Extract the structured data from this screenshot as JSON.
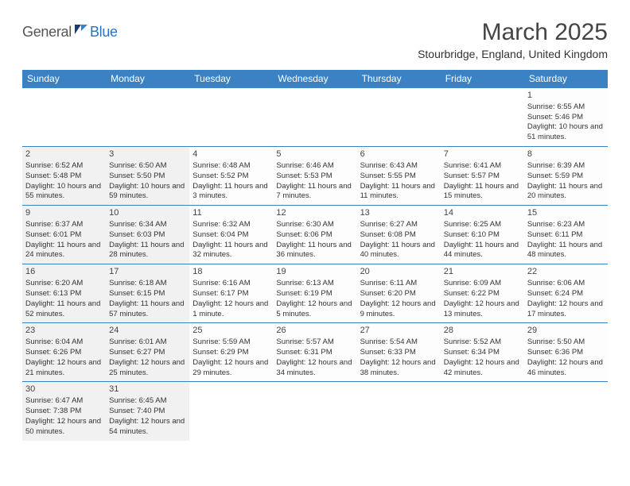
{
  "brand": {
    "part1": "General",
    "part2": "Blue"
  },
  "title": "March 2025",
  "location": "Stourbridge, England, United Kingdom",
  "daysOfWeek": [
    "Sunday",
    "Monday",
    "Tuesday",
    "Wednesday",
    "Thursday",
    "Friday",
    "Saturday"
  ],
  "colors": {
    "headerBg": "#3b82c4",
    "brandBlue": "#2b72c2",
    "shade": "#f1f1f1",
    "border": "#3b82c4"
  },
  "weeks": [
    [
      {
        "empty": true
      },
      {
        "empty": true
      },
      {
        "empty": true
      },
      {
        "empty": true
      },
      {
        "empty": true
      },
      {
        "empty": true
      },
      {
        "day": 1,
        "sunrise": "6:55 AM",
        "sunset": "5:46 PM",
        "daylight": "10 hours and 51 minutes."
      }
    ],
    [
      {
        "day": 2,
        "shade": true,
        "sunrise": "6:52 AM",
        "sunset": "5:48 PM",
        "daylight": "10 hours and 55 minutes."
      },
      {
        "day": 3,
        "shade": true,
        "sunrise": "6:50 AM",
        "sunset": "5:50 PM",
        "daylight": "10 hours and 59 minutes."
      },
      {
        "day": 4,
        "sunrise": "6:48 AM",
        "sunset": "5:52 PM",
        "daylight": "11 hours and 3 minutes."
      },
      {
        "day": 5,
        "sunrise": "6:46 AM",
        "sunset": "5:53 PM",
        "daylight": "11 hours and 7 minutes."
      },
      {
        "day": 6,
        "sunrise": "6:43 AM",
        "sunset": "5:55 PM",
        "daylight": "11 hours and 11 minutes."
      },
      {
        "day": 7,
        "sunrise": "6:41 AM",
        "sunset": "5:57 PM",
        "daylight": "11 hours and 15 minutes."
      },
      {
        "day": 8,
        "sunrise": "6:39 AM",
        "sunset": "5:59 PM",
        "daylight": "11 hours and 20 minutes."
      }
    ],
    [
      {
        "day": 9,
        "shade": true,
        "sunrise": "6:37 AM",
        "sunset": "6:01 PM",
        "daylight": "11 hours and 24 minutes."
      },
      {
        "day": 10,
        "shade": true,
        "sunrise": "6:34 AM",
        "sunset": "6:03 PM",
        "daylight": "11 hours and 28 minutes."
      },
      {
        "day": 11,
        "sunrise": "6:32 AM",
        "sunset": "6:04 PM",
        "daylight": "11 hours and 32 minutes."
      },
      {
        "day": 12,
        "sunrise": "6:30 AM",
        "sunset": "6:06 PM",
        "daylight": "11 hours and 36 minutes."
      },
      {
        "day": 13,
        "sunrise": "6:27 AM",
        "sunset": "6:08 PM",
        "daylight": "11 hours and 40 minutes."
      },
      {
        "day": 14,
        "sunrise": "6:25 AM",
        "sunset": "6:10 PM",
        "daylight": "11 hours and 44 minutes."
      },
      {
        "day": 15,
        "sunrise": "6:23 AM",
        "sunset": "6:11 PM",
        "daylight": "11 hours and 48 minutes."
      }
    ],
    [
      {
        "day": 16,
        "shade": true,
        "sunrise": "6:20 AM",
        "sunset": "6:13 PM",
        "daylight": "11 hours and 52 minutes."
      },
      {
        "day": 17,
        "shade": true,
        "sunrise": "6:18 AM",
        "sunset": "6:15 PM",
        "daylight": "11 hours and 57 minutes."
      },
      {
        "day": 18,
        "sunrise": "6:16 AM",
        "sunset": "6:17 PM",
        "daylight": "12 hours and 1 minute."
      },
      {
        "day": 19,
        "sunrise": "6:13 AM",
        "sunset": "6:19 PM",
        "daylight": "12 hours and 5 minutes."
      },
      {
        "day": 20,
        "sunrise": "6:11 AM",
        "sunset": "6:20 PM",
        "daylight": "12 hours and 9 minutes."
      },
      {
        "day": 21,
        "sunrise": "6:09 AM",
        "sunset": "6:22 PM",
        "daylight": "12 hours and 13 minutes."
      },
      {
        "day": 22,
        "sunrise": "6:06 AM",
        "sunset": "6:24 PM",
        "daylight": "12 hours and 17 minutes."
      }
    ],
    [
      {
        "day": 23,
        "shade": true,
        "sunrise": "6:04 AM",
        "sunset": "6:26 PM",
        "daylight": "12 hours and 21 minutes."
      },
      {
        "day": 24,
        "shade": true,
        "sunrise": "6:01 AM",
        "sunset": "6:27 PM",
        "daylight": "12 hours and 25 minutes."
      },
      {
        "day": 25,
        "sunrise": "5:59 AM",
        "sunset": "6:29 PM",
        "daylight": "12 hours and 29 minutes."
      },
      {
        "day": 26,
        "sunrise": "5:57 AM",
        "sunset": "6:31 PM",
        "daylight": "12 hours and 34 minutes."
      },
      {
        "day": 27,
        "sunrise": "5:54 AM",
        "sunset": "6:33 PM",
        "daylight": "12 hours and 38 minutes."
      },
      {
        "day": 28,
        "sunrise": "5:52 AM",
        "sunset": "6:34 PM",
        "daylight": "12 hours and 42 minutes."
      },
      {
        "day": 29,
        "sunrise": "5:50 AM",
        "sunset": "6:36 PM",
        "daylight": "12 hours and 46 minutes."
      }
    ],
    [
      {
        "day": 30,
        "shade": true,
        "sunrise": "6:47 AM",
        "sunset": "7:38 PM",
        "daylight": "12 hours and 50 minutes."
      },
      {
        "day": 31,
        "shade": true,
        "sunrise": "6:45 AM",
        "sunset": "7:40 PM",
        "daylight": "12 hours and 54 minutes."
      },
      {
        "empty": true
      },
      {
        "empty": true
      },
      {
        "empty": true
      },
      {
        "empty": true
      },
      {
        "empty": true
      }
    ]
  ]
}
